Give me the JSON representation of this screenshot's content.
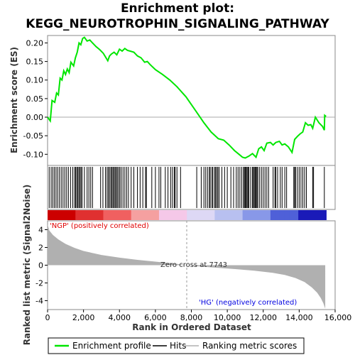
{
  "chart_data": {
    "type": "line",
    "title_line1": "Enrichment plot:",
    "title_line2": "KEGG_NEUROTROPHIN_SIGNALING_PATHWAY",
    "xlabel": "Rank in Ordered Dataset",
    "ylabel_top": "Enrichment score (ES)",
    "ylabel_bottom": "Ranked list metric (Signal2Noise)",
    "xlim": [
      0,
      16000
    ],
    "ylim_es": [
      -0.13,
      0.22
    ],
    "ylim_metric": [
      -5,
      5
    ],
    "x_ticks": [
      0,
      2000,
      4000,
      6000,
      8000,
      10000,
      12000,
      14000,
      16000
    ],
    "x_tick_labels": [
      "0",
      "2,000",
      "4,000",
      "6,000",
      "8,000",
      "10,000",
      "12,000",
      "14,000",
      "16,000"
    ],
    "es_ticks": [
      0.2,
      0.15,
      0.1,
      0.05,
      0.0,
      -0.05,
      -0.1
    ],
    "es_tick_labels": [
      "0.20",
      "0.15",
      "0.10",
      "0.05",
      "0.00",
      "-0.05",
      "-0.10"
    ],
    "metric_ticks": [
      4,
      2,
      0,
      -2,
      -4
    ],
    "metric_tick_labels": [
      "4",
      "2",
      "0",
      "-2",
      "-4"
    ],
    "es_curve": [
      [
        0,
        0.0
      ],
      [
        150,
        -0.01
      ],
      [
        250,
        0.045
      ],
      [
        400,
        0.04
      ],
      [
        500,
        0.065
      ],
      [
        600,
        0.06
      ],
      [
        700,
        0.105
      ],
      [
        800,
        0.1
      ],
      [
        900,
        0.125
      ],
      [
        1000,
        0.115
      ],
      [
        1100,
        0.13
      ],
      [
        1200,
        0.12
      ],
      [
        1300,
        0.148
      ],
      [
        1450,
        0.138
      ],
      [
        1550,
        0.16
      ],
      [
        1650,
        0.175
      ],
      [
        1750,
        0.2
      ],
      [
        1850,
        0.195
      ],
      [
        1950,
        0.212
      ],
      [
        2050,
        0.215
      ],
      [
        2200,
        0.205
      ],
      [
        2350,
        0.208
      ],
      [
        2500,
        0.2
      ],
      [
        2700,
        0.19
      ],
      [
        2900,
        0.182
      ],
      [
        3100,
        0.172
      ],
      [
        3250,
        0.16
      ],
      [
        3350,
        0.152
      ],
      [
        3450,
        0.165
      ],
      [
        3550,
        0.17
      ],
      [
        3700,
        0.175
      ],
      [
        3850,
        0.168
      ],
      [
        4000,
        0.183
      ],
      [
        4150,
        0.178
      ],
      [
        4300,
        0.185
      ],
      [
        4450,
        0.18
      ],
      [
        4600,
        0.178
      ],
      [
        4800,
        0.175
      ],
      [
        5000,
        0.165
      ],
      [
        5200,
        0.16
      ],
      [
        5400,
        0.148
      ],
      [
        5550,
        0.15
      ],
      [
        5700,
        0.142
      ],
      [
        6000,
        0.128
      ],
      [
        6400,
        0.115
      ],
      [
        6800,
        0.1
      ],
      [
        7200,
        0.082
      ],
      [
        7700,
        0.055
      ],
      [
        8200,
        0.02
      ],
      [
        8700,
        -0.015
      ],
      [
        9100,
        -0.04
      ],
      [
        9500,
        -0.058
      ],
      [
        9800,
        -0.062
      ],
      [
        10100,
        -0.075
      ],
      [
        10400,
        -0.09
      ],
      [
        10650,
        -0.1
      ],
      [
        10850,
        -0.108
      ],
      [
        11000,
        -0.11
      ],
      [
        11200,
        -0.105
      ],
      [
        11400,
        -0.098
      ],
      [
        11600,
        -0.108
      ],
      [
        11750,
        -0.085
      ],
      [
        11900,
        -0.08
      ],
      [
        12050,
        -0.09
      ],
      [
        12200,
        -0.07
      ],
      [
        12400,
        -0.068
      ],
      [
        12550,
        -0.075
      ],
      [
        12700,
        -0.068
      ],
      [
        12900,
        -0.065
      ],
      [
        13050,
        -0.075
      ],
      [
        13200,
        -0.072
      ],
      [
        13400,
        -0.08
      ],
      [
        13600,
        -0.095
      ],
      [
        13750,
        -0.06
      ],
      [
        13900,
        -0.052
      ],
      [
        14050,
        -0.045
      ],
      [
        14200,
        -0.04
      ],
      [
        14350,
        -0.015
      ],
      [
        14500,
        -0.022
      ],
      [
        14650,
        -0.02
      ],
      [
        14750,
        -0.03
      ],
      [
        14900,
        0.0
      ],
      [
        15100,
        -0.015
      ],
      [
        15300,
        -0.025
      ],
      [
        15400,
        -0.035
      ],
      [
        15420,
        0.005
      ],
      [
        15500,
        0.002
      ]
    ],
    "hits": [
      90,
      200,
      290,
      380,
      470,
      560,
      660,
      760,
      860,
      960,
      1060,
      1160,
      1280,
      1400,
      1500,
      1560,
      1620,
      1680,
      1740,
      1800,
      1860,
      1920,
      2050,
      2200,
      2300,
      2400,
      2500,
      2950,
      3080,
      3220,
      3310,
      3380,
      3450,
      3520,
      3580,
      3640,
      3700,
      3760,
      3820,
      3880,
      3950,
      4020,
      4100,
      4200,
      4300,
      4400,
      4500,
      4650,
      4800,
      5000,
      5150,
      5300,
      5450,
      5500,
      5800,
      6000,
      6200,
      6300,
      6550,
      6700,
      6850,
      6950,
      7050,
      7100,
      7200,
      7400,
      8300,
      8550,
      8700,
      8800,
      8900,
      9000,
      9050,
      9150,
      9200,
      9300,
      9350,
      9420,
      9480,
      9550,
      9700,
      9850,
      10000,
      10200,
      10350,
      10500,
      10600,
      10700,
      10800,
      10900,
      10950,
      11000,
      11050,
      11100,
      11150,
      11200,
      11300,
      11400,
      11450,
      11500,
      11550,
      11600,
      11650,
      11700,
      11800,
      11900,
      12000,
      12100,
      12200,
      12300,
      12550,
      12650,
      12700,
      12800,
      12950,
      13050,
      13200,
      13300,
      13700,
      13750,
      13800,
      13900,
      14000,
      14100,
      14200,
      14300,
      14400,
      14750,
      14800,
      15400
    ],
    "metric_curve": [
      [
        0,
        4.6
      ],
      [
        100,
        3.9
      ],
      [
        300,
        3.4
      ],
      [
        600,
        2.9
      ],
      [
        1000,
        2.4
      ],
      [
        1500,
        1.95
      ],
      [
        2000,
        1.6
      ],
      [
        3000,
        1.15
      ],
      [
        4000,
        0.85
      ],
      [
        5000,
        0.6
      ],
      [
        6000,
        0.4
      ],
      [
        7000,
        0.2
      ],
      [
        7743,
        0.0
      ],
      [
        8500,
        -0.15
      ],
      [
        9500,
        -0.3
      ],
      [
        10500,
        -0.45
      ],
      [
        11500,
        -0.62
      ],
      [
        12500,
        -0.85
      ],
      [
        13200,
        -1.1
      ],
      [
        13800,
        -1.45
      ],
      [
        14300,
        -1.9
      ],
      [
        14700,
        -2.5
      ],
      [
        15000,
        -3.1
      ],
      [
        15200,
        -3.7
      ],
      [
        15350,
        -4.3
      ],
      [
        15450,
        -4.9
      ]
    ],
    "heatmap_colors": [
      "#cc0000",
      "#e03030",
      "#f06060",
      "#f5a0a0",
      "#f5c8e8",
      "#ddd8f5",
      "#b8c0f0",
      "#8898e8",
      "#4f60d8",
      "#1a1ab8"
    ],
    "positive_label": "'NGP' (positively correlated)",
    "negative_label": "'HG' (negatively correlated)",
    "zero_cross_label": "Zero cross at 7743",
    "zero_cross_rank": 7743,
    "legend": [
      "Enrichment profile",
      "Hits",
      "Ranking metric scores"
    ],
    "colors": {
      "es_line": "#00e600",
      "hits": "#000000",
      "metric_fill": "#b0b0b0",
      "positive_text": "#e00000",
      "negative_text": "#0000e0"
    }
  }
}
